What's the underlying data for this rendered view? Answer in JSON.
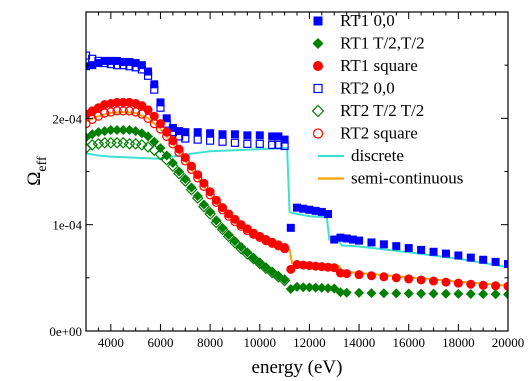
{
  "chart_data": {
    "type": "scatter",
    "title": "",
    "xlabel": "energy (eV)",
    "ylabel_main": "Ω",
    "ylabel_sub": "eff",
    "xlim": [
      3000,
      20000
    ],
    "ylim": [
      0,
      0.0003
    ],
    "xticks": [
      4000,
      6000,
      8000,
      10000,
      12000,
      14000,
      16000,
      18000,
      20000
    ],
    "xtick_labels": [
      "4000",
      "6000",
      "8000",
      "10000",
      "12000",
      "14000",
      "16000",
      "18000",
      "20000"
    ],
    "yticks": [
      0,
      0.0001,
      0.0002
    ],
    "ytick_labels": [
      "0e+00",
      "1e-04",
      "2e-04"
    ],
    "grid": false,
    "legend_position": "top-right",
    "series": [
      {
        "name": "RT1 0,0",
        "marker": "filled-square",
        "color": "#0000ff",
        "x": [
          3000,
          3250,
          3500,
          3750,
          4000,
          4250,
          4500,
          4750,
          5000,
          5250,
          5500,
          5750,
          6000,
          6250,
          6500,
          6750,
          7000,
          7500,
          8000,
          8500,
          9000,
          9500,
          10000,
          10500,
          10750,
          11000,
          11250,
          11500,
          11750,
          12000,
          12250,
          12500,
          12750,
          13000,
          13250,
          13500,
          13750,
          14000,
          14500,
          15000,
          15500,
          16000,
          16500,
          17000,
          17500,
          18000,
          18500,
          19000,
          19500,
          20000
        ],
        "y": [
          0.000249,
          0.00025,
          0.000252,
          0.000254,
          0.000254,
          0.000254,
          0.000253,
          0.000253,
          0.000252,
          0.00025,
          0.000244,
          0.000232,
          0.000215,
          0.0002,
          0.000191,
          0.000188,
          0.000187,
          0.000187,
          0.000186,
          0.000185,
          0.000185,
          0.000184,
          0.000184,
          0.000183,
          0.000183,
          0.00018,
          9.7e-05,
          0.000116,
          0.000115,
          0.000114,
          0.000113,
          0.000112,
          0.00011,
          8.6e-05,
          8.78e-05,
          8.7e-05,
          8.6e-05,
          8.5e-05,
          8.33e-05,
          8.15e-05,
          7.98e-05,
          7.8e-05,
          7.63e-05,
          7.45e-05,
          7.28e-05,
          7.1e-05,
          6.9e-05,
          6.7e-05,
          6.5e-05,
          6.3e-05
        ]
      },
      {
        "name": "RT1 T/2,T/2",
        "marker": "filled-diamond",
        "color": "#008000",
        "x": [
          3000,
          3250,
          3500,
          3750,
          4000,
          4250,
          4500,
          4750,
          5000,
          5250,
          5500,
          5750,
          6000,
          6250,
          6500,
          6750,
          7000,
          7250,
          7500,
          7750,
          8000,
          8250,
          8500,
          8750,
          9000,
          9250,
          9500,
          9750,
          10000,
          10250,
          10500,
          10750,
          11000,
          11250,
          11500,
          11750,
          12000,
          12250,
          12500,
          12750,
          13000,
          13250,
          13500,
          14000,
          14500,
          15000,
          15500,
          16000,
          16500,
          17000,
          17500,
          18000,
          18500,
          19000,
          19500,
          20000
        ],
        "y": [
          0.000182,
          0.000185,
          0.000187,
          0.000188,
          0.000189,
          0.000189,
          0.000189,
          0.000189,
          0.000188,
          0.000186,
          0.000183,
          0.000178,
          0.000172,
          0.000165,
          0.000158,
          0.00015,
          0.000143,
          0.000135,
          0.000127,
          0.000119,
          0.000112,
          0.000104,
          9.7e-05,
          9.05e-05,
          8.45e-05,
          7.9e-05,
          7.4e-05,
          6.9e-05,
          6.45e-05,
          6e-05,
          5.6e-05,
          5.2e-05,
          4.85e-05,
          3.95e-05,
          4.15e-05,
          4.12e-05,
          4.1e-05,
          4.08e-05,
          4.05e-05,
          4.02e-05,
          4e-05,
          3.65e-05,
          3.6e-05,
          3.58e-05,
          3.56e-05,
          3.55e-05,
          3.54e-05,
          3.53e-05,
          3.52e-05,
          3.51e-05,
          3.5e-05,
          3.49e-05,
          3.48e-05,
          3.47e-05,
          3.46e-05,
          3.45e-05
        ]
      },
      {
        "name": "RT1 square",
        "marker": "filled-circle",
        "color": "#ff0000",
        "x": [
          3000,
          3250,
          3500,
          3750,
          4000,
          4250,
          4500,
          4750,
          5000,
          5250,
          5500,
          5750,
          6000,
          6250,
          6500,
          6750,
          7000,
          7250,
          7500,
          7750,
          8000,
          8250,
          8500,
          8750,
          9000,
          9250,
          9500,
          9750,
          10000,
          10250,
          10500,
          10750,
          11000,
          11250,
          11500,
          11750,
          12000,
          12250,
          12500,
          12750,
          13000,
          13250,
          13500,
          14000,
          14500,
          15000,
          15500,
          16000,
          16500,
          17000,
          17500,
          18000,
          18500,
          19000,
          19500,
          20000
        ],
        "y": [
          0.000204,
          0.000207,
          0.00021,
          0.000213,
          0.000214,
          0.000215,
          0.000215,
          0.000215,
          0.000214,
          0.000212,
          0.000208,
          0.000202,
          0.000195,
          0.000187,
          0.000179,
          0.000171,
          0.000163,
          0.000155,
          0.000147,
          0.000139,
          0.000131,
          0.000123,
          0.000116,
          0.00011,
          0.000105,
          0.0001,
          9.6e-05,
          9.2e-05,
          8.9e-05,
          8.6e-05,
          8.35e-05,
          8.1e-05,
          7.85e-05,
          5.8e-05,
          6.25e-05,
          6.2e-05,
          6.15e-05,
          6.1e-05,
          6.05e-05,
          6e-05,
          5.95e-05,
          5.45e-05,
          5.4e-05,
          5.3e-05,
          5.2e-05,
          5.1e-05,
          5e-05,
          4.9e-05,
          4.8e-05,
          4.7e-05,
          4.6e-05,
          4.5e-05,
          4.4e-05,
          4.3e-05,
          4.25e-05,
          4.2e-05
        ]
      },
      {
        "name": "RT2 0,0",
        "marker": "open-square",
        "color": "#0000ff",
        "x": [
          3000,
          3250,
          3500,
          3750,
          4000,
          4250,
          4500,
          4750,
          5000,
          5250,
          5500,
          5750,
          6000,
          6250,
          6500,
          6750,
          7000,
          7500,
          8000,
          8500,
          9000,
          9500,
          10000,
          10500,
          10750,
          11000
        ],
        "y": [
          0.000259,
          0.000256,
          0.000254,
          0.000252,
          0.000251,
          0.00025,
          0.00025,
          0.000249,
          0.000248,
          0.000246,
          0.00024,
          0.000227,
          0.00021,
          0.000195,
          0.000187,
          0.000183,
          0.000181,
          0.00018,
          0.000179,
          0.000178,
          0.000177,
          0.000176,
          0.000176,
          0.000175,
          0.000175,
          0.000174
        ]
      },
      {
        "name": "RT2 T/2 T/2",
        "marker": "open-diamond",
        "color": "#008000",
        "x": [
          3000,
          3250,
          3500,
          3750,
          4000,
          4250,
          4500,
          4750,
          5000,
          5250,
          5500,
          5750,
          6000,
          6250,
          6500,
          6750,
          7000,
          7250,
          7500,
          7750,
          8000,
          8250,
          8500,
          8750,
          9000,
          9250,
          9500,
          9750,
          10000,
          10250,
          10500,
          10750,
          11000
        ],
        "y": [
          0.000172,
          0.000175,
          0.000176,
          0.000177,
          0.000177,
          0.000177,
          0.000177,
          0.000176,
          0.000176,
          0.000175,
          0.000173,
          0.00017,
          0.000166,
          0.000161,
          0.000155,
          0.000148,
          0.000141,
          0.000133,
          0.000125,
          0.000117,
          0.00011,
          0.000102,
          9.55e-05,
          8.9e-05,
          8.3e-05,
          7.75e-05,
          7.25e-05,
          6.8e-05,
          6.35e-05,
          5.9e-05,
          5.5e-05,
          5.1e-05,
          4.75e-05
        ]
      },
      {
        "name": "RT2 square",
        "marker": "open-circle",
        "color": "#ff0000",
        "x": [
          3000,
          3250,
          3500,
          3750,
          4000,
          4250,
          4500,
          4750,
          5000,
          5250,
          5500,
          5750,
          6000,
          6250,
          6500,
          6750,
          7000,
          7250,
          7500,
          7750,
          8000,
          8250,
          8500,
          8750,
          9000,
          9250,
          9500,
          9750,
          10000,
          10250,
          10500,
          10750,
          11000
        ],
        "y": [
          0.000195,
          0.000199,
          0.000202,
          0.000205,
          0.000206,
          0.000207,
          0.000207,
          0.000207,
          0.000206,
          0.000204,
          0.0002,
          0.000195,
          0.00019,
          0.000183,
          0.000176,
          0.000168,
          0.00016,
          0.000152,
          0.000144,
          0.000136,
          0.000128,
          0.000121,
          0.000114,
          0.000108,
          0.000103,
          9.85e-05,
          9.45e-05,
          9.1e-05,
          8.8e-05,
          8.5e-05,
          8.25e-05,
          8e-05,
          7.75e-05
        ]
      },
      {
        "name": "discrete",
        "marker": "line",
        "color": "#40e0d0",
        "x": [
          3000,
          3500,
          4000,
          5000,
          6000,
          7000,
          8000,
          9000,
          10000,
          11000,
          11100,
          11200,
          11300,
          12000,
          12700,
          12800,
          13200,
          13300,
          14000,
          16000,
          18000,
          20000
        ],
        "y": [
          0.000167,
          0.000165,
          0.000164,
          0.000163,
          0.000162,
          0.000166,
          0.000169,
          0.00017,
          0.000171,
          0.000172,
          0.000172,
          0.000112,
          0.000111,
          0.000108,
          0.000107,
          8.6e-05,
          8.5e-05,
          8.05e-05,
          7.95e-05,
          7.4e-05,
          6.8e-05,
          6e-05
        ]
      },
      {
        "name": "semi-continuous",
        "marker": "line",
        "color": "#ffa500",
        "x": [
          3000,
          3500,
          4000,
          4500,
          5000,
          5500,
          6000,
          6500,
          7000,
          7500,
          8000,
          8500,
          9000,
          9500,
          10000,
          10500,
          11000,
          11200,
          11300,
          12000,
          12700,
          13200,
          13300,
          14000,
          16000,
          18000,
          20000
        ],
        "y": [
          0.000197,
          0.000202,
          0.000205,
          0.000206,
          0.000205,
          0.0002,
          0.00019,
          0.000176,
          0.00016,
          0.000144,
          0.000128,
          0.000114,
          0.000103,
          9.45e-05,
          8.8e-05,
          8.25e-05,
          7.75e-05,
          7.6e-05,
          6.4e-05,
          6.3e-05,
          6.2e-05,
          6.1e-05,
          5.6e-05,
          5.45e-05,
          5.05e-05,
          4.65e-05,
          4.25e-05
        ]
      }
    ]
  }
}
